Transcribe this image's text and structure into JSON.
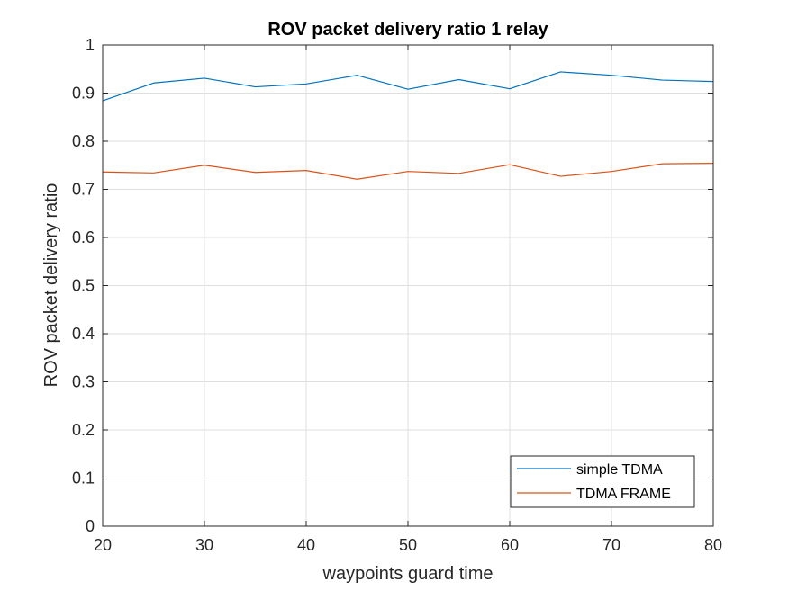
{
  "chart_data": {
    "type": "line",
    "title": "ROV packet delivery ratio 1 relay",
    "xlabel": "waypoints guard time",
    "ylabel": "ROV packet delivery ratio",
    "xlim": [
      20,
      80
    ],
    "ylim": [
      0,
      1
    ],
    "xticks": [
      "20",
      "30",
      "40",
      "50",
      "60",
      "70",
      "80"
    ],
    "yticks": [
      "0",
      "0.1",
      "0.2",
      "0.3",
      "0.4",
      "0.5",
      "0.6",
      "0.7",
      "0.8",
      "0.9",
      "1"
    ],
    "grid": true,
    "legend_position": "bottom-right",
    "x": [
      20,
      25,
      30,
      35,
      40,
      45,
      50,
      55,
      60,
      65,
      70,
      75,
      80
    ],
    "series": [
      {
        "name": "simple TDMA",
        "color": "#0072BD",
        "values": [
          0.884,
          0.921,
          0.931,
          0.913,
          0.919,
          0.937,
          0.908,
          0.928,
          0.909,
          0.944,
          0.937,
          0.927,
          0.924
        ]
      },
      {
        "name": "TDMA FRAME",
        "color": "#D95319",
        "values": [
          0.736,
          0.734,
          0.75,
          0.735,
          0.739,
          0.721,
          0.737,
          0.733,
          0.751,
          0.727,
          0.737,
          0.753,
          0.754
        ]
      }
    ]
  }
}
